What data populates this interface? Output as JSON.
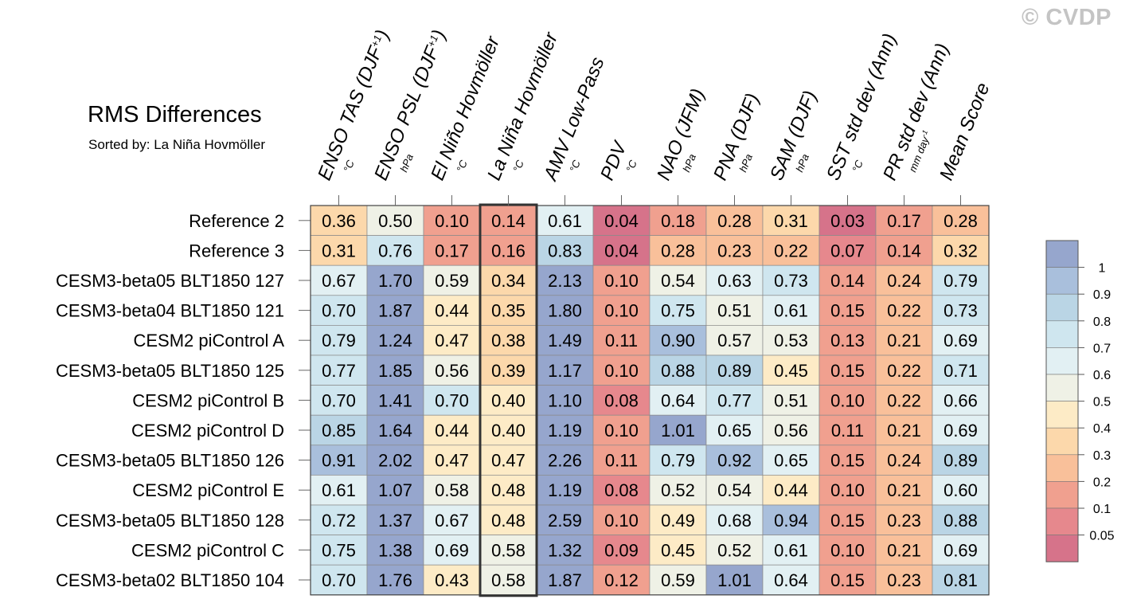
{
  "watermark": "© CVDP",
  "chart_data": {
    "type": "heatmap",
    "title": "RMS Differences",
    "subtitle": "Sorted by: La Niña Hovmöller",
    "columns": [
      {
        "label": "ENSO TAS (DJF",
        "sup": "+1",
        "close": ")",
        "unit": "°C"
      },
      {
        "label": "ENSO PSL (DJF",
        "sup": "+1",
        "close": ")",
        "unit": "hPa"
      },
      {
        "label": "El Niño Hovmöller",
        "unit": "°C"
      },
      {
        "label": "La Niña Hovmöller",
        "unit": "°C"
      },
      {
        "label": "AMV Low-Pass",
        "unit": "°C"
      },
      {
        "label": "PDV",
        "unit": "°C"
      },
      {
        "label": "NAO (JFM)",
        "unit": "hPa"
      },
      {
        "label": "PNA (DJF)",
        "unit": "hPa"
      },
      {
        "label": "SAM (DJF)",
        "unit": "hPa"
      },
      {
        "label": "SST std dev (Ann)",
        "unit": "°C"
      },
      {
        "label": "PR std dev (Ann)",
        "unit": "mm day",
        "unit_sup": "-1"
      },
      {
        "label": "Mean Score",
        "unit": ""
      }
    ],
    "highlighted_column": 3,
    "rows": [
      {
        "name": "Reference 2",
        "values": [
          "0.36",
          "0.50",
          "0.10",
          "0.14",
          "0.61",
          "0.04",
          "0.18",
          "0.28",
          "0.31",
          "0.03",
          "0.17",
          "0.28"
        ]
      },
      {
        "name": "Reference 3",
        "values": [
          "0.31",
          "0.76",
          "0.17",
          "0.16",
          "0.83",
          "0.04",
          "0.28",
          "0.23",
          "0.22",
          "0.07",
          "0.14",
          "0.32"
        ]
      },
      {
        "name": "CESM3-beta05 BLT1850 127",
        "values": [
          "0.67",
          "1.70",
          "0.59",
          "0.34",
          "2.13",
          "0.10",
          "0.54",
          "0.63",
          "0.73",
          "0.14",
          "0.24",
          "0.79"
        ]
      },
      {
        "name": "CESM3-beta04 BLT1850 121",
        "values": [
          "0.70",
          "1.87",
          "0.44",
          "0.35",
          "1.80",
          "0.10",
          "0.75",
          "0.51",
          "0.61",
          "0.15",
          "0.22",
          "0.73"
        ]
      },
      {
        "name": "CESM2 piControl A",
        "values": [
          "0.79",
          "1.24",
          "0.47",
          "0.38",
          "1.49",
          "0.11",
          "0.90",
          "0.57",
          "0.53",
          "0.13",
          "0.21",
          "0.69"
        ]
      },
      {
        "name": "CESM3-beta05 BLT1850 125",
        "values": [
          "0.77",
          "1.85",
          "0.56",
          "0.39",
          "1.17",
          "0.10",
          "0.88",
          "0.89",
          "0.45",
          "0.15",
          "0.22",
          "0.71"
        ]
      },
      {
        "name": "CESM2 piControl B",
        "values": [
          "0.70",
          "1.41",
          "0.70",
          "0.40",
          "1.10",
          "0.08",
          "0.64",
          "0.77",
          "0.51",
          "0.10",
          "0.22",
          "0.66"
        ]
      },
      {
        "name": "CESM2 piControl D",
        "values": [
          "0.85",
          "1.64",
          "0.44",
          "0.40",
          "1.19",
          "0.10",
          "1.01",
          "0.65",
          "0.56",
          "0.11",
          "0.21",
          "0.69"
        ]
      },
      {
        "name": "CESM3-beta05 BLT1850 126",
        "values": [
          "0.91",
          "2.02",
          "0.47",
          "0.47",
          "2.26",
          "0.11",
          "0.79",
          "0.92",
          "0.65",
          "0.15",
          "0.24",
          "0.89"
        ]
      },
      {
        "name": "CESM2 piControl E",
        "values": [
          "0.61",
          "1.07",
          "0.58",
          "0.48",
          "1.19",
          "0.08",
          "0.52",
          "0.54",
          "0.44",
          "0.10",
          "0.21",
          "0.60"
        ]
      },
      {
        "name": "CESM3-beta05 BLT1850 128",
        "values": [
          "0.72",
          "1.37",
          "0.67",
          "0.48",
          "2.59",
          "0.10",
          "0.49",
          "0.68",
          "0.94",
          "0.15",
          "0.23",
          "0.88"
        ]
      },
      {
        "name": "CESM2 piControl C",
        "values": [
          "0.75",
          "1.38",
          "0.69",
          "0.58",
          "1.32",
          "0.09",
          "0.45",
          "0.52",
          "0.61",
          "0.10",
          "0.21",
          "0.69"
        ]
      },
      {
        "name": "CESM3-beta02 BLT1850 104",
        "values": [
          "0.70",
          "1.76",
          "0.43",
          "0.58",
          "1.87",
          "0.12",
          "0.59",
          "1.01",
          "0.64",
          "0.15",
          "0.23",
          "0.81"
        ]
      }
    ],
    "colorbar": {
      "levels": [
        "1",
        "0.9",
        "0.8",
        "0.7",
        "0.6",
        "0.5",
        "0.4",
        "0.3",
        "0.2",
        "0.1",
        "0.05"
      ],
      "colors": [
        "#96a6cd",
        "#a9bfdc",
        "#bad5e5",
        "#cfe6ef",
        "#e2f0f3",
        "#eff1e6",
        "#fdebc6",
        "#fcd8ab",
        "#f9c09a",
        "#f0a08f",
        "#e6888d",
        "#d6738a"
      ],
      "cell_breaks": [
        0.05,
        0.1,
        0.2,
        0.3,
        0.4,
        0.5,
        0.6,
        0.7,
        0.8,
        0.9,
        1.0
      ],
      "cell_colors": [
        "#d6738a",
        "#e6888d",
        "#f0a08f",
        "#f9c09a",
        "#fcd8ab",
        "#fdebc6",
        "#eff1e6",
        "#e2f0f3",
        "#cfe6ef",
        "#bad5e5",
        "#a9bfdc",
        "#96a6cd"
      ]
    }
  }
}
